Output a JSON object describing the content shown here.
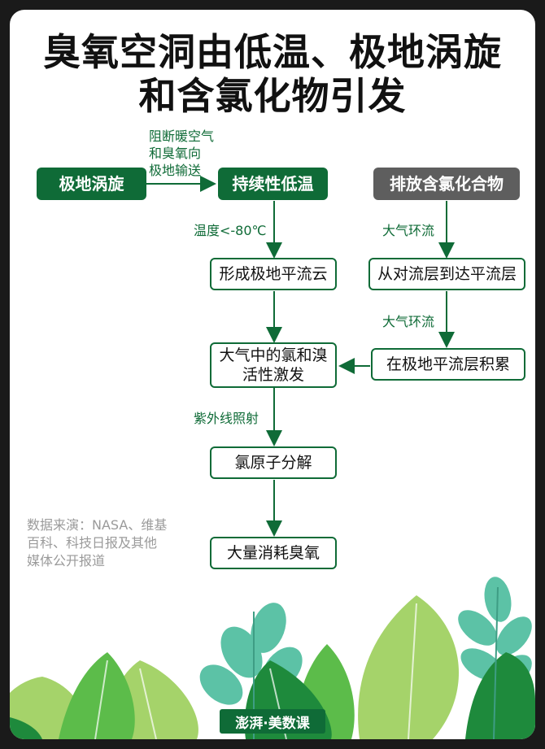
{
  "title": {
    "line1": "臭氧空洞由低温、极地涡旋",
    "line2": "和含氯化物引发"
  },
  "nodes": {
    "polar_vortex": "极地涡旋",
    "sustained_low_temp": "持续性低温",
    "emit_chlorides": "排放含氯化合物",
    "form_psc": "形成极地平流云",
    "troposphere_to_stratosphere": "从对流层到达平流层",
    "activation_line1": "大气中的氯和溴",
    "activation_line2": "活性激发",
    "accumulate_polar_stratosphere": "在极地平流层积累",
    "chlorine_decomposition": "氯原子分解",
    "ozone_depletion": "大量消耗臭氧"
  },
  "edge_labels": {
    "block_warm_air_1": "阻断暖空气",
    "block_warm_air_2": "和臭氧向",
    "block_warm_air_3": "极地输送",
    "temperature": "温度<-80℃",
    "atmos_circulation_1": "大气环流",
    "atmos_circulation_2": "大气环流",
    "uv_irradiation": "紫外线照射"
  },
  "source": {
    "line1": "数据来演：NASA、维基",
    "line2": "百科、科技日报及其他",
    "line3": "媒体公开报道"
  },
  "logo": {
    "text": "澎湃·美数课"
  },
  "colors": {
    "dark_green": "#0f6b37",
    "grey": "#5e5e5e",
    "leaf_light": "#8bc34a",
    "leaf_teal": "#4fb59a",
    "leaf_green": "#2e9e4f"
  }
}
